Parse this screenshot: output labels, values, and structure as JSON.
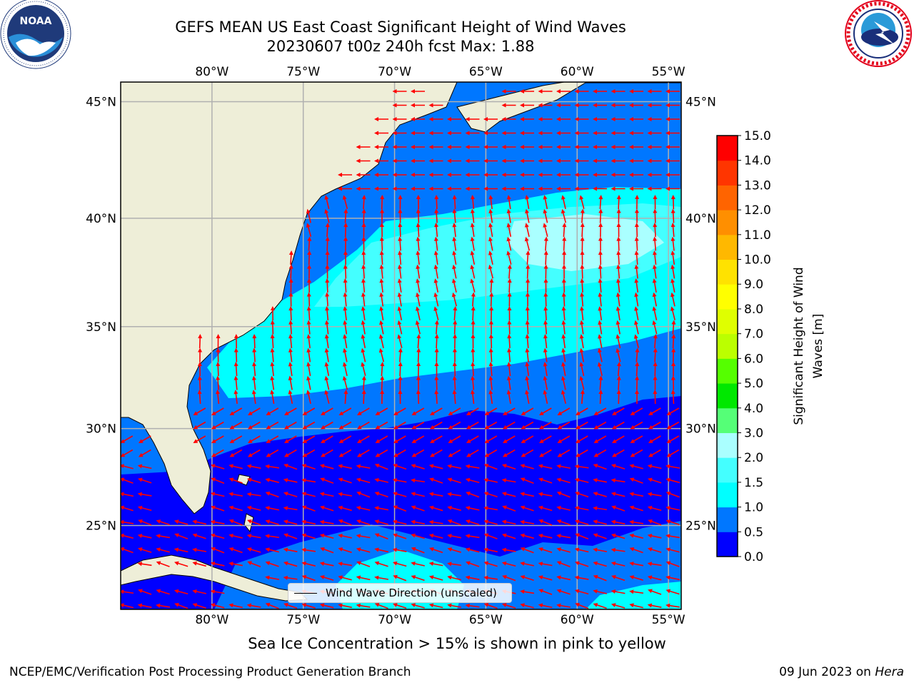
{
  "header": {
    "title": "GEFS MEAN US East Coast Significant Height of Wind Waves",
    "subtitle": "20230607 t00z 240h fcst   Max: 1.88"
  },
  "logos": {
    "left": {
      "name": "noaa-logo",
      "text": "NOAA",
      "ring_text": "NATIONAL OCEANIC AND ATMOSPHERIC ADMINISTRATION · U.S. DEPARTMENT OF COMMERCE"
    },
    "right": {
      "name": "nws-logo",
      "ring_text": "NATIONAL WEATHER SERVICE"
    }
  },
  "map": {
    "lon_labels": [
      "80°W",
      "75°W",
      "70°W",
      "65°W",
      "60°W",
      "55°W"
    ],
    "lat_labels": [
      "45°N",
      "40°N",
      "35°N",
      "30°N",
      "25°N"
    ],
    "lon_values": [
      -80,
      -75,
      -70,
      -65,
      -60,
      -55
    ],
    "lat_values": [
      45,
      40,
      35,
      30,
      25
    ],
    "extent": {
      "lon_min": -85,
      "lon_max": -54.3,
      "lat_min": 20.5,
      "lat_max": 45.8
    },
    "arrow_color": "#ff0000",
    "land_color": "#eeeed8",
    "grid_color": "#b0b0b0",
    "legend_label": "Wind Wave Direction (unscaled)"
  },
  "colorbar": {
    "label": "Significant Height of Wind Waves [m]",
    "label_line1": "Significant Height of Wind",
    "label_line2": "Waves [m]",
    "ticks": [
      "0.0",
      "0.5",
      "1.0",
      "1.5",
      "2.0",
      "3.0",
      "4.0",
      "5.0",
      "6.0",
      "7.0",
      "8.0",
      "9.0",
      "10.0",
      "11.0",
      "12.0",
      "13.0",
      "14.0",
      "15.0"
    ],
    "colors": [
      "#0000ff",
      "#0077ff",
      "#00ffff",
      "#44ffff",
      "#aaffff",
      "#55ff77",
      "#00e800",
      "#55ff00",
      "#bbff00",
      "#dfff00",
      "#ffff00",
      "#ffe200",
      "#ffb800",
      "#ff8f00",
      "#ff6400",
      "#ff3500",
      "#ff0000"
    ]
  },
  "bottom": {
    "caption": "Sea Ice Concentration > 15% is shown in pink to yellow",
    "footer_left": "NCEP/EMC/Verification Post Processing Product Generation Branch",
    "footer_date": "09 Jun 2023 on ",
    "footer_host": "Hera"
  }
}
